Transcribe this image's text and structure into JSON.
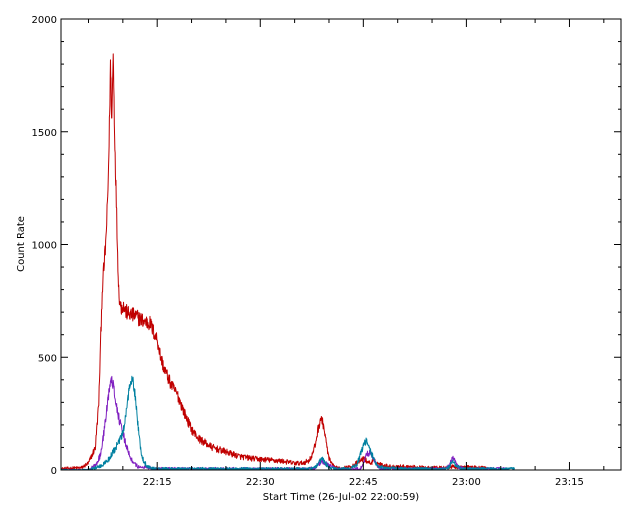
{
  "chart_data": {
    "type": "line",
    "xlabel": "Start Time (26-Jul-02 22:00:59)",
    "ylabel": "Count Rate",
    "x_unit": "minutes",
    "xlim": [
      0.0,
      81.5
    ],
    "ylim": [
      0,
      2000
    ],
    "x_ticks": [
      {
        "value": 14.0,
        "label": "22:15"
      },
      {
        "value": 29.0,
        "label": "22:30"
      },
      {
        "value": 44.0,
        "label": "22:45"
      },
      {
        "value": 59.0,
        "label": "23:00"
      },
      {
        "value": 74.0,
        "label": "23:15"
      }
    ],
    "y_ticks": [
      {
        "value": 0,
        "label": "0"
      },
      {
        "value": 500,
        "label": "500"
      },
      {
        "value": 1000,
        "label": "1000"
      },
      {
        "value": 1500,
        "label": "1500"
      },
      {
        "value": 2000,
        "label": "2000"
      }
    ],
    "grid": false,
    "legend": "none",
    "series": [
      {
        "color": "#c00000",
        "x": [
          0.0,
          3.0,
          4.0,
          5.0,
          5.5,
          6.0,
          6.5,
          6.8,
          7.0,
          7.2,
          7.4,
          7.6,
          7.8,
          8.0,
          8.2,
          8.4,
          8.6,
          8.8,
          9.0,
          9.5,
          10.0,
          11.0,
          12.0,
          13.0,
          13.5,
          14.0,
          14.5,
          15.0,
          16.0,
          17.0,
          18.0,
          19.0,
          20.0,
          22.0,
          24.0,
          26.0,
          28.0,
          30.0,
          32.0,
          34.0,
          35.0,
          36.0,
          36.5,
          37.0,
          37.4,
          37.8,
          38.2,
          38.6,
          39.0,
          39.5,
          40.0,
          41.0,
          42.0,
          43.0,
          44.0,
          44.5,
          45.0,
          45.5,
          46.0,
          47.0,
          48.0,
          50.0,
          52.0,
          54.0,
          56.0,
          57.0,
          58.0,
          60.0,
          62.0
        ],
        "y": [
          5,
          10,
          30,
          100,
          300,
          800,
          1000,
          1200,
          1450,
          1800,
          1550,
          1850,
          1500,
          1250,
          1000,
          800,
          740,
          720,
          730,
          700,
          690,
          680,
          660,
          650,
          610,
          580,
          500,
          450,
          380,
          330,
          250,
          180,
          140,
          100,
          80,
          60,
          50,
          45,
          40,
          30,
          30,
          40,
          60,
          110,
          180,
          230,
          200,
          120,
          50,
          20,
          10,
          10,
          12,
          30,
          50,
          40,
          30,
          40,
          30,
          20,
          15,
          15,
          12,
          10,
          10,
          15,
          12,
          12,
          10
        ]
      },
      {
        "color": "#8020c0",
        "x": [
          0.0,
          4.0,
          5.0,
          5.8,
          6.3,
          6.8,
          7.0,
          7.3,
          7.6,
          7.9,
          8.2,
          8.6,
          9.0,
          9.4,
          9.8,
          10.5,
          11.5,
          12.0,
          13.0,
          14.0,
          36.0,
          37.0,
          38.0,
          39.0,
          40.0,
          43.5,
          44.0,
          44.5,
          45.0,
          45.5,
          46.0,
          47.0,
          56.0,
          56.5,
          57.0,
          57.5,
          58.0,
          59.0,
          65.0
        ],
        "y": [
          0,
          0,
          20,
          70,
          180,
          300,
          360,
          420,
          380,
          320,
          260,
          210,
          160,
          120,
          80,
          30,
          10,
          15,
          10,
          5,
          5,
          10,
          40,
          20,
          5,
          5,
          25,
          70,
          80,
          50,
          15,
          5,
          5,
          20,
          60,
          25,
          10,
          5,
          5
        ]
      },
      {
        "color": "#0080a0",
        "x": [
          0.0,
          4.0,
          5.0,
          6.0,
          7.0,
          8.0,
          9.0,
          9.5,
          10.0,
          10.4,
          10.8,
          11.2,
          11.6,
          12.0,
          12.5,
          13.0,
          14.0,
          20.0,
          36.0,
          37.0,
          37.5,
          38.0,
          38.5,
          39.0,
          40.0,
          42.0,
          43.0,
          43.5,
          44.0,
          44.5,
          45.0,
          45.5,
          46.0,
          47.0,
          50.0,
          56.0,
          56.5,
          57.0,
          57.5,
          58.0,
          59.0,
          66.0
        ],
        "y": [
          0,
          0,
          10,
          20,
          50,
          100,
          160,
          250,
          380,
          420,
          330,
          200,
          90,
          40,
          20,
          10,
          5,
          5,
          5,
          10,
          30,
          50,
          30,
          10,
          5,
          5,
          20,
          60,
          110,
          130,
          90,
          50,
          20,
          10,
          5,
          5,
          15,
          40,
          20,
          10,
          5,
          5
        ]
      }
    ]
  }
}
